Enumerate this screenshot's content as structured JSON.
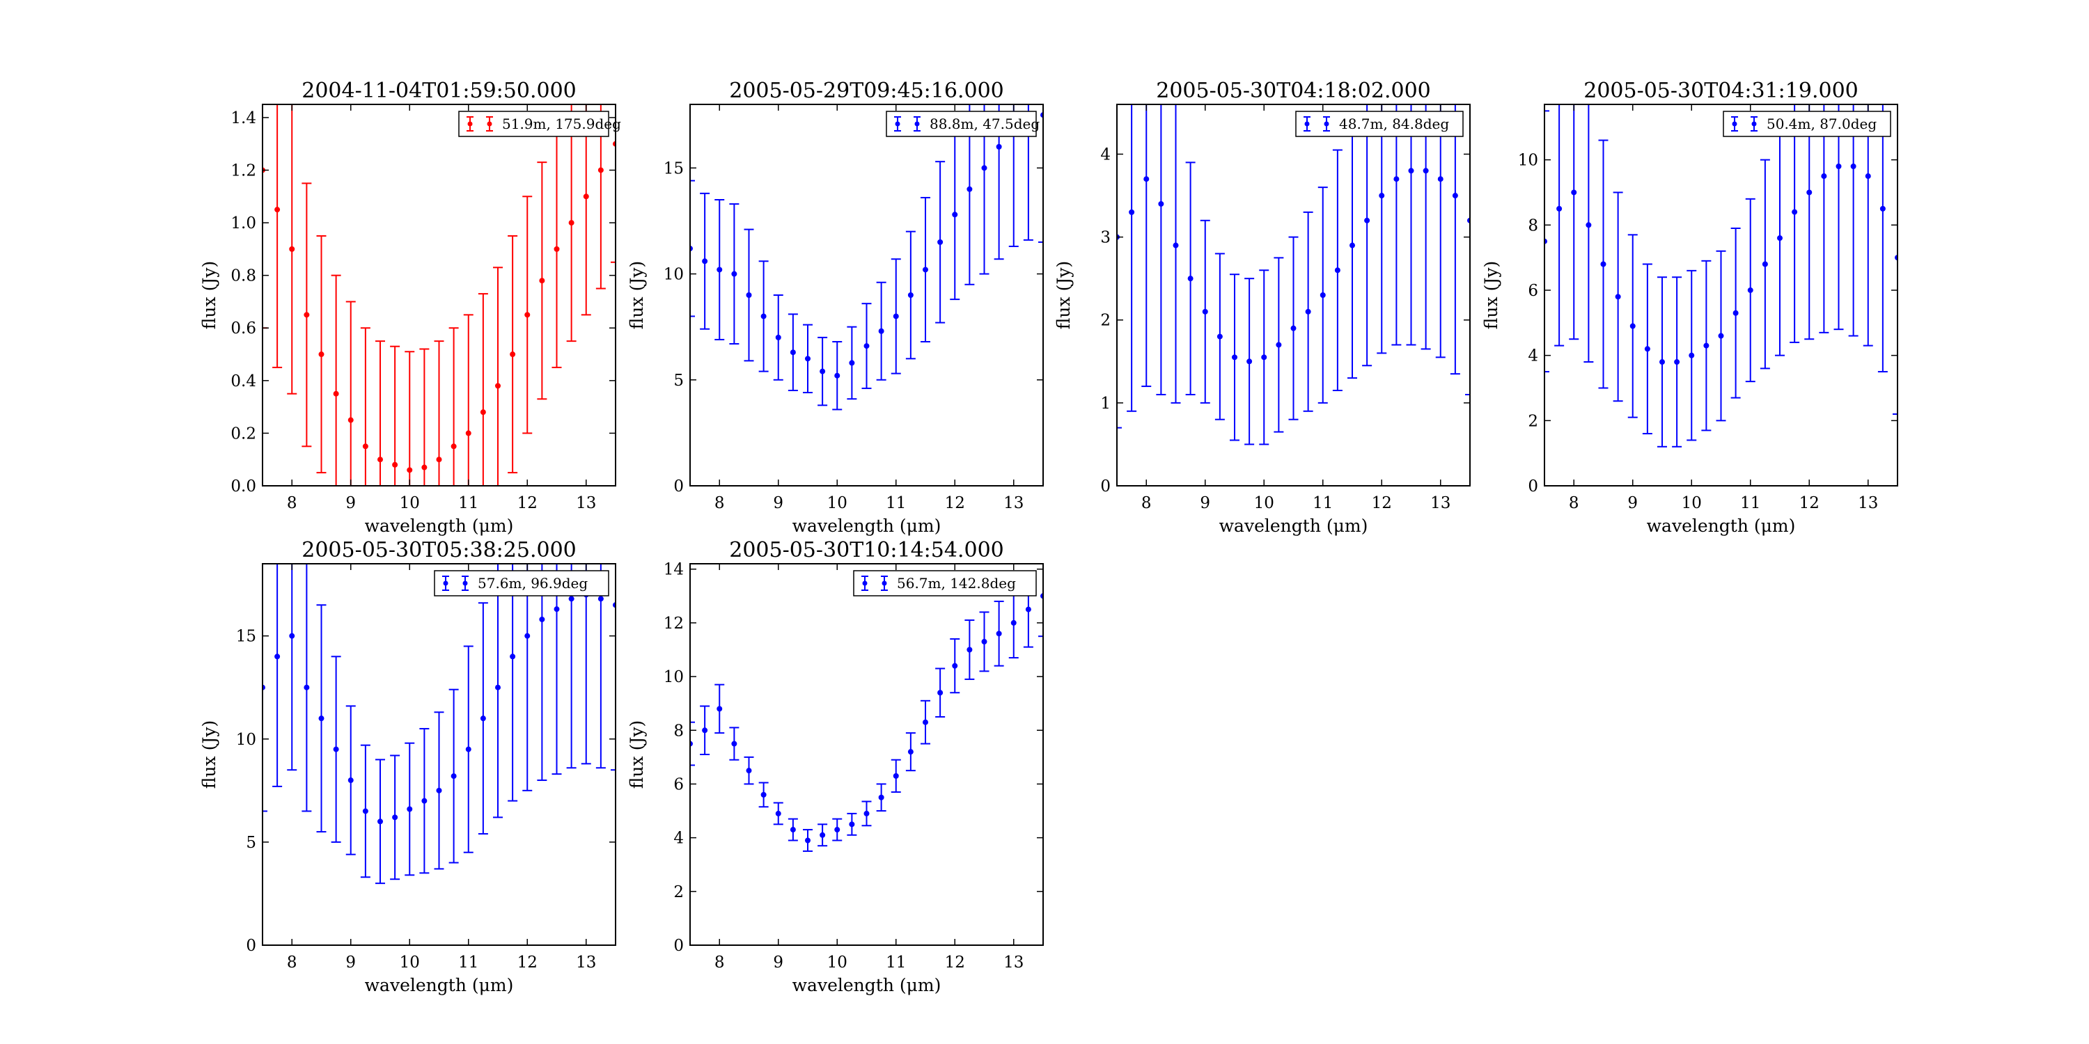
{
  "chart_data": [
    {
      "type": "scatter",
      "title": "2004-11-04T01:59:50.000",
      "xlabel": "wavelength (μm)",
      "ylabel": "flux (Jy)",
      "xlim": [
        7.5,
        13.5
      ],
      "ylim": [
        0,
        1.45
      ],
      "xticks": [
        8,
        9,
        10,
        11,
        12,
        13
      ],
      "yticks": [
        0.0,
        0.2,
        0.4,
        0.6,
        0.8,
        1.0,
        1.2,
        1.4
      ],
      "ytick_labels": [
        "0.0",
        "0.2",
        "0.4",
        "0.6",
        "0.8",
        "1.0",
        "1.2",
        "1.4"
      ],
      "error_bars": true,
      "legend_position": "top-right",
      "series": [
        {
          "name": "51.9m, 175.9deg",
          "color": "#ff0000",
          "x": [
            7.5,
            7.75,
            8.0,
            8.25,
            8.5,
            8.75,
            9.0,
            9.25,
            9.5,
            9.75,
            10.0,
            10.25,
            10.5,
            10.75,
            11.0,
            11.25,
            11.5,
            11.75,
            12.0,
            12.25,
            12.5,
            12.75,
            13.0,
            13.25,
            13.5
          ],
          "y": [
            1.2,
            1.05,
            0.9,
            0.65,
            0.5,
            0.35,
            0.25,
            0.15,
            0.1,
            0.08,
            0.06,
            0.07,
            0.1,
            0.15,
            0.2,
            0.28,
            0.38,
            0.5,
            0.65,
            0.78,
            0.9,
            1.0,
            1.1,
            1.2,
            1.3
          ],
          "err": [
            0.6,
            0.6,
            0.55,
            0.5,
            0.45,
            0.45,
            0.45,
            0.45,
            0.45,
            0.45,
            0.45,
            0.45,
            0.45,
            0.45,
            0.45,
            0.45,
            0.45,
            0.45,
            0.45,
            0.45,
            0.45,
            0.45,
            0.45,
            0.45,
            0.45
          ]
        }
      ]
    },
    {
      "type": "scatter",
      "title": "2005-05-29T09:45:16.000",
      "xlabel": "wavelength (μm)",
      "ylabel": "flux (Jy)",
      "xlim": [
        7.5,
        13.5
      ],
      "ylim": [
        0,
        18
      ],
      "xticks": [
        8,
        9,
        10,
        11,
        12,
        13
      ],
      "yticks": [
        0,
        5,
        10,
        15
      ],
      "ytick_labels": [
        "0",
        "5",
        "10",
        "15"
      ],
      "error_bars": true,
      "legend_position": "top-right",
      "series": [
        {
          "name": "88.8m, 47.5deg",
          "color": "#0000ff",
          "x": [
            7.5,
            7.75,
            8.0,
            8.25,
            8.5,
            8.75,
            9.0,
            9.25,
            9.5,
            9.75,
            10.0,
            10.25,
            10.5,
            10.75,
            11.0,
            11.25,
            11.5,
            11.75,
            12.0,
            12.25,
            12.5,
            12.75,
            13.0,
            13.25,
            13.5
          ],
          "y": [
            11.2,
            10.6,
            10.2,
            10.0,
            9.0,
            8.0,
            7.0,
            6.3,
            6.0,
            5.4,
            5.2,
            5.8,
            6.6,
            7.3,
            8.0,
            9.0,
            10.2,
            11.5,
            12.8,
            14.0,
            15.0,
            16.0,
            16.8,
            17.3,
            17.5
          ],
          "err": [
            3.2,
            3.2,
            3.3,
            3.3,
            3.1,
            2.6,
            2.0,
            1.8,
            1.6,
            1.6,
            1.6,
            1.7,
            2.0,
            2.3,
            2.7,
            3.0,
            3.4,
            3.8,
            4.0,
            4.5,
            5.0,
            5.3,
            5.5,
            5.7,
            6.0
          ]
        }
      ]
    },
    {
      "type": "scatter",
      "title": "2005-05-30T04:18:02.000",
      "xlabel": "wavelength (μm)",
      "ylabel": "flux (Jy)",
      "xlim": [
        7.5,
        13.5
      ],
      "ylim": [
        0,
        4.6
      ],
      "xticks": [
        8,
        9,
        10,
        11,
        12,
        13
      ],
      "yticks": [
        0,
        1,
        2,
        3,
        4
      ],
      "ytick_labels": [
        "0",
        "1",
        "2",
        "3",
        "4"
      ],
      "error_bars": true,
      "legend_position": "top-right",
      "series": [
        {
          "name": "48.7m, 84.8deg",
          "color": "#0000ff",
          "x": [
            7.5,
            7.75,
            8.0,
            8.25,
            8.5,
            8.75,
            9.0,
            9.25,
            9.5,
            9.75,
            10.0,
            10.25,
            10.5,
            10.75,
            11.0,
            11.25,
            11.5,
            11.75,
            12.0,
            12.25,
            12.5,
            12.75,
            13.0,
            13.25,
            13.5
          ],
          "y": [
            3.0,
            3.3,
            3.7,
            3.4,
            2.9,
            2.5,
            2.1,
            1.8,
            1.55,
            1.5,
            1.55,
            1.7,
            1.9,
            2.1,
            2.3,
            2.6,
            2.9,
            3.2,
            3.5,
            3.7,
            3.8,
            3.8,
            3.7,
            3.5,
            3.2
          ],
          "err": [
            2.3,
            2.4,
            2.5,
            2.3,
            1.9,
            1.4,
            1.1,
            1.0,
            1.0,
            1.0,
            1.05,
            1.05,
            1.1,
            1.2,
            1.3,
            1.45,
            1.6,
            1.75,
            1.9,
            2.0,
            2.1,
            2.15,
            2.15,
            2.15,
            2.1
          ]
        }
      ]
    },
    {
      "type": "scatter",
      "title": "2005-05-30T04:31:19.000",
      "xlabel": "wavelength (μm)",
      "ylabel": "flux (Jy)",
      "xlim": [
        7.5,
        13.5
      ],
      "ylim": [
        0,
        11.7
      ],
      "xticks": [
        8,
        9,
        10,
        11,
        12,
        13
      ],
      "yticks": [
        0,
        2,
        4,
        6,
        8,
        10
      ],
      "ytick_labels": [
        "0",
        "2",
        "4",
        "6",
        "8",
        "10"
      ],
      "error_bars": true,
      "legend_position": "top-right",
      "series": [
        {
          "name": "50.4m, 87.0deg",
          "color": "#0000ff",
          "x": [
            7.5,
            7.75,
            8.0,
            8.25,
            8.5,
            8.75,
            9.0,
            9.25,
            9.5,
            9.75,
            10.0,
            10.25,
            10.5,
            10.75,
            11.0,
            11.25,
            11.5,
            11.75,
            12.0,
            12.25,
            12.5,
            12.75,
            13.0,
            13.25,
            13.5
          ],
          "y": [
            7.5,
            8.5,
            9.0,
            8.0,
            6.8,
            5.8,
            4.9,
            4.2,
            3.8,
            3.8,
            4.0,
            4.3,
            4.6,
            5.3,
            6.0,
            6.8,
            7.6,
            8.4,
            9.0,
            9.5,
            9.8,
            9.8,
            9.5,
            8.5,
            7.0
          ],
          "err": [
            4.0,
            4.2,
            4.5,
            4.2,
            3.8,
            3.2,
            2.8,
            2.6,
            2.6,
            2.6,
            2.6,
            2.6,
            2.6,
            2.6,
            2.8,
            3.2,
            3.6,
            4.0,
            4.5,
            4.8,
            5.0,
            5.2,
            5.2,
            5.0,
            4.8
          ]
        }
      ]
    },
    {
      "type": "scatter",
      "title": "2005-05-30T05:38:25.000",
      "xlabel": "wavelength (μm)",
      "ylabel": "flux (Jy)",
      "xlim": [
        7.5,
        13.5
      ],
      "ylim": [
        0,
        18.5
      ],
      "xticks": [
        8,
        9,
        10,
        11,
        12,
        13
      ],
      "yticks": [
        0,
        5,
        10,
        15
      ],
      "ytick_labels": [
        "0",
        "5",
        "10",
        "15"
      ],
      "error_bars": true,
      "legend_position": "top-right",
      "series": [
        {
          "name": "57.6m, 96.9deg",
          "color": "#0000ff",
          "x": [
            7.5,
            7.75,
            8.0,
            8.25,
            8.5,
            8.75,
            9.0,
            9.25,
            9.5,
            9.75,
            10.0,
            10.25,
            10.5,
            10.75,
            11.0,
            11.25,
            11.5,
            11.75,
            12.0,
            12.25,
            12.5,
            12.75,
            13.0,
            13.25,
            13.5
          ],
          "y": [
            12.5,
            14.0,
            15.0,
            12.5,
            11.0,
            9.5,
            8.0,
            6.5,
            6.0,
            6.2,
            6.6,
            7.0,
            7.5,
            8.2,
            9.5,
            11.0,
            12.5,
            14.0,
            15.0,
            15.8,
            16.3,
            16.8,
            17.0,
            16.8,
            16.5
          ],
          "err": [
            6.0,
            6.3,
            6.5,
            6.0,
            5.5,
            4.5,
            3.6,
            3.2,
            3.0,
            3.0,
            3.2,
            3.5,
            3.8,
            4.2,
            5.0,
            5.6,
            6.3,
            7.0,
            7.5,
            7.8,
            8.0,
            8.2,
            8.2,
            8.2,
            8.0
          ]
        }
      ]
    },
    {
      "type": "scatter",
      "title": "2005-05-30T10:14:54.000",
      "xlabel": "wavelength (μm)",
      "ylabel": "flux (Jy)",
      "xlim": [
        7.5,
        13.5
      ],
      "ylim": [
        0,
        14.2
      ],
      "xticks": [
        8,
        9,
        10,
        11,
        12,
        13
      ],
      "yticks": [
        0,
        2,
        4,
        6,
        8,
        10,
        12,
        14
      ],
      "ytick_labels": [
        "0",
        "2",
        "4",
        "6",
        "8",
        "10",
        "12",
        "14"
      ],
      "error_bars": true,
      "legend_position": "top-right",
      "series": [
        {
          "name": "56.7m, 142.8deg",
          "color": "#0000ff",
          "x": [
            7.5,
            7.75,
            8.0,
            8.25,
            8.5,
            8.75,
            9.0,
            9.25,
            9.5,
            9.75,
            10.0,
            10.25,
            10.5,
            10.75,
            11.0,
            11.25,
            11.5,
            11.75,
            12.0,
            12.25,
            12.5,
            12.75,
            13.0,
            13.25,
            13.5
          ],
          "y": [
            7.5,
            8.0,
            8.8,
            7.5,
            6.5,
            5.6,
            4.9,
            4.3,
            3.9,
            4.1,
            4.3,
            4.5,
            4.9,
            5.5,
            6.3,
            7.2,
            8.3,
            9.4,
            10.4,
            11.0,
            11.3,
            11.6,
            12.0,
            12.5,
            13.0
          ],
          "err": [
            0.8,
            0.9,
            0.9,
            0.6,
            0.5,
            0.45,
            0.4,
            0.4,
            0.4,
            0.4,
            0.4,
            0.4,
            0.45,
            0.5,
            0.6,
            0.7,
            0.8,
            0.9,
            1.0,
            1.1,
            1.1,
            1.2,
            1.3,
            1.4,
            1.5
          ]
        }
      ]
    }
  ]
}
